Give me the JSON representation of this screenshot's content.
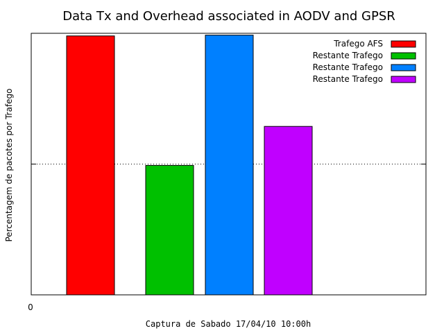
{
  "chart_data": {
    "type": "bar",
    "title": "Data Tx and Overhead associated in AODV and GPSR",
    "xlabel": "Captura de Sabado 17/04/10 10:00h",
    "ylabel": "Percentagem de pacotes por Trafego",
    "x_tick_label": "0",
    "ylim": [
      0,
      100
    ],
    "grid": "horizontal dotted line at 50",
    "legend_position": "top-right",
    "series": [
      {
        "name": "Trafego AFS",
        "value": 99,
        "color": "#ff0000"
      },
      {
        "name": "Restante Trafego",
        "value": 49.5,
        "color": "#00c000"
      },
      {
        "name": "Restante Trafego",
        "value": 99.3,
        "color": "#0080ff"
      },
      {
        "name": "Restante Trafego",
        "value": 64.4,
        "color": "#c000ff"
      }
    ]
  }
}
